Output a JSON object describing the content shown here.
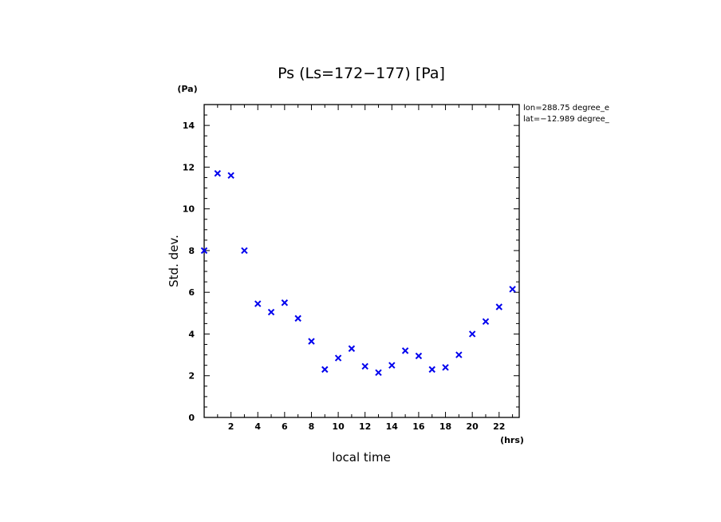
{
  "chart_data": {
    "type": "scatter",
    "title": "Ps (Ls=172−177) [Pa]",
    "xlabel": "local time",
    "ylabel": "Std. dev.",
    "x_unit": "(hrs)",
    "y_unit": "(Pa)",
    "xlim": [
      0,
      23.5
    ],
    "ylim": [
      0,
      15
    ],
    "x_ticks": [
      2,
      4,
      6,
      8,
      10,
      12,
      14,
      16,
      18,
      20,
      22
    ],
    "y_ticks": [
      0,
      2,
      4,
      6,
      8,
      10,
      12,
      14
    ],
    "annotations": [
      "lon=288.75 degree_e",
      "lat=−12.989 degree_"
    ],
    "marker": "x",
    "marker_color": "#0000ee",
    "grid": false,
    "x": [
      0,
      1,
      2,
      3,
      4,
      5,
      6,
      7,
      8,
      9,
      10,
      11,
      12,
      13,
      14,
      15,
      16,
      17,
      18,
      19,
      20,
      21,
      22,
      23
    ],
    "values": [
      8.0,
      11.7,
      11.6,
      8.0,
      5.45,
      5.05,
      5.5,
      4.75,
      3.65,
      2.3,
      2.85,
      3.3,
      2.45,
      2.15,
      2.5,
      3.2,
      2.95,
      2.3,
      2.4,
      3.0,
      4.0,
      4.6,
      5.3,
      6.15
    ]
  }
}
